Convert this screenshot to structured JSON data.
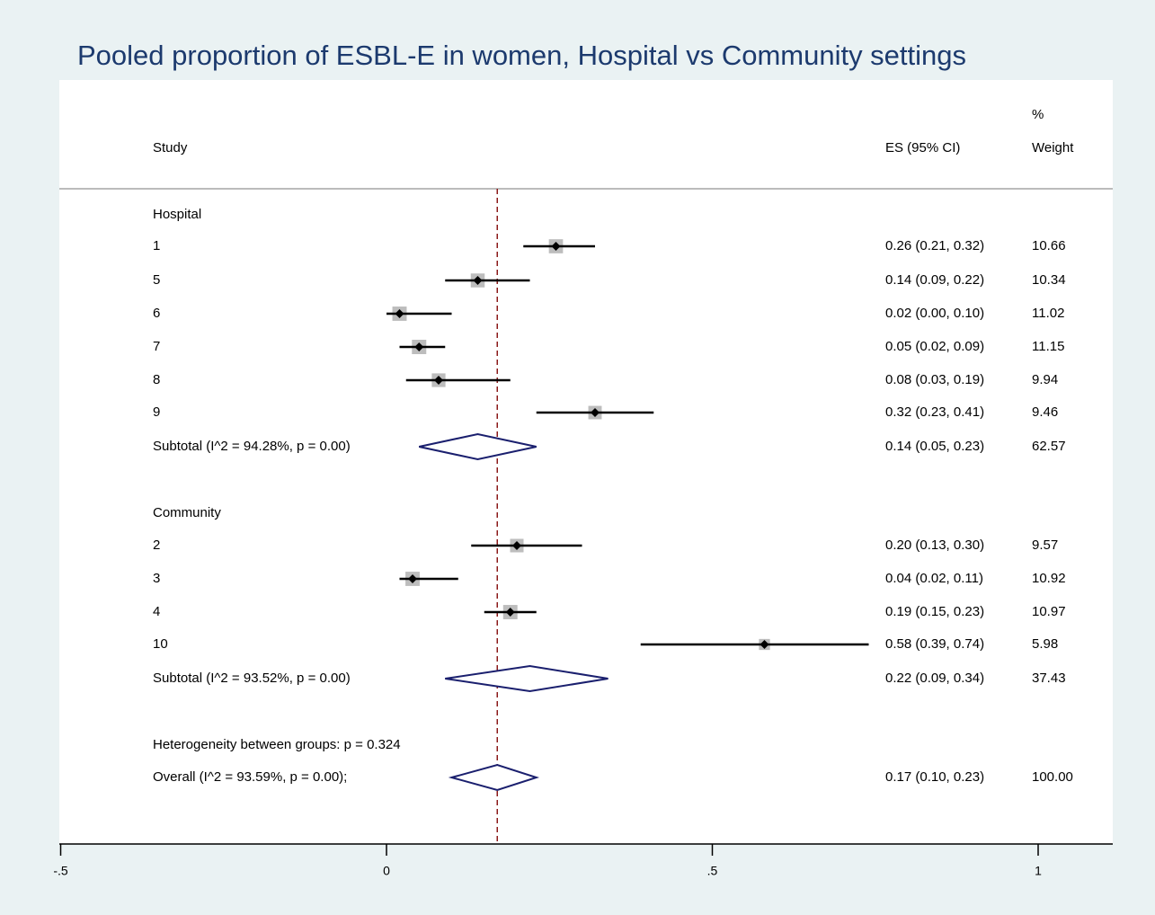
{
  "chart_data": {
    "type": "forest",
    "title": "Pooled proportion of ESBL-E in women, Hospital vs Community settings",
    "headers": {
      "study": "Study",
      "es": "ES (95% CI)",
      "weight_line1": "%",
      "weight_line2": "Weight"
    },
    "xaxis": {
      "range": [
        -0.5,
        1.1
      ],
      "ticks": [
        -0.5,
        0,
        0.5,
        1
      ],
      "tick_labels": [
        "-.5",
        "0",
        ".5",
        "1"
      ]
    },
    "reference_line": 0.17,
    "groups": [
      {
        "label": "Hospital",
        "studies": [
          {
            "label": "1",
            "es": 0.26,
            "lo": 0.21,
            "hi": 0.32,
            "text": "0.26 (0.21, 0.32)",
            "weight": "10.66"
          },
          {
            "label": "5",
            "es": 0.14,
            "lo": 0.09,
            "hi": 0.22,
            "text": "0.14 (0.09, 0.22)",
            "weight": "10.34"
          },
          {
            "label": "6",
            "es": 0.02,
            "lo": 0.0,
            "hi": 0.1,
            "text": "0.02 (0.00, 0.10)",
            "weight": "11.02"
          },
          {
            "label": "7",
            "es": 0.05,
            "lo": 0.02,
            "hi": 0.09,
            "text": "0.05 (0.02, 0.09)",
            "weight": "11.15"
          },
          {
            "label": "8",
            "es": 0.08,
            "lo": 0.03,
            "hi": 0.19,
            "text": "0.08 (0.03, 0.19)",
            "weight": "9.94"
          },
          {
            "label": "9",
            "es": 0.32,
            "lo": 0.23,
            "hi": 0.41,
            "text": "0.32 (0.23, 0.41)",
            "weight": "9.46"
          }
        ],
        "subtotal": {
          "label": "Subtotal  (I^2 = 94.28%, p = 0.00)",
          "es": 0.14,
          "lo": 0.05,
          "hi": 0.23,
          "text": "0.14 (0.05, 0.23)",
          "weight": "62.57"
        }
      },
      {
        "label": "Community",
        "studies": [
          {
            "label": "2",
            "es": 0.2,
            "lo": 0.13,
            "hi": 0.3,
            "text": "0.20 (0.13, 0.30)",
            "weight": "9.57"
          },
          {
            "label": "3",
            "es": 0.04,
            "lo": 0.02,
            "hi": 0.11,
            "text": "0.04 (0.02, 0.11)",
            "weight": "10.92"
          },
          {
            "label": "4",
            "es": 0.19,
            "lo": 0.15,
            "hi": 0.23,
            "text": "0.19 (0.15, 0.23)",
            "weight": "10.97"
          },
          {
            "label": "10",
            "es": 0.58,
            "lo": 0.39,
            "hi": 0.74,
            "text": "0.58 (0.39, 0.74)",
            "weight": "5.98"
          }
        ],
        "subtotal": {
          "label": "Subtotal  (I^2 = 93.52%, p = 0.00)",
          "es": 0.22,
          "lo": 0.09,
          "hi": 0.34,
          "text": "0.22 (0.09, 0.34)",
          "weight": "37.43"
        }
      }
    ],
    "heterogeneity_text": "Heterogeneity between groups: p = 0.324",
    "overall": {
      "label": "Overall  (I^2 = 93.59%, p = 0.00);",
      "es": 0.17,
      "lo": 0.1,
      "hi": 0.23,
      "text": "0.17 (0.10, 0.23)",
      "weight": "100.00"
    },
    "colors": {
      "background": "#eaf2f3",
      "plot_background": "#ffffff",
      "title": "#1c3a6e",
      "diamond": "#1a1f6e",
      "reference_line": "#8b1a1a",
      "weight_box": "#bdbdbd",
      "ci_line": "#000000"
    }
  }
}
